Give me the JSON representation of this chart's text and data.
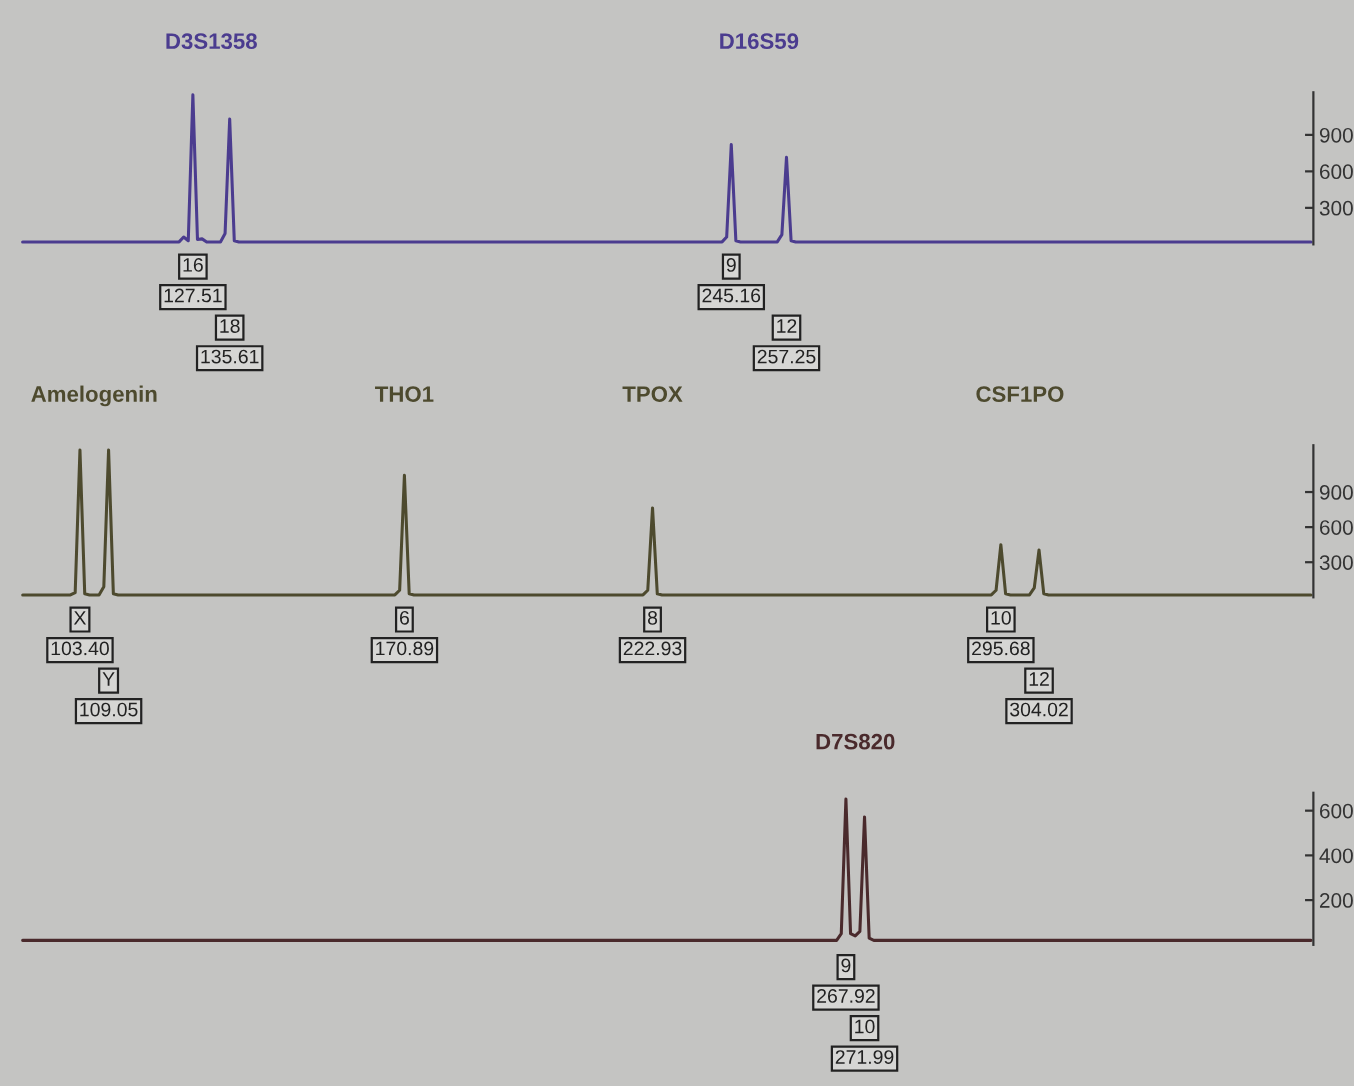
{
  "chart_data": [
    {
      "type": "line",
      "tick_labels": "y",
      "grid": false,
      "legend": false,
      "marker": "none",
      "line_style": "solid",
      "ylim": [
        0,
        1250
      ],
      "yticks": [
        300,
        600,
        900
      ],
      "categories": [
        null,
        null,
        null,
        null,
        null,
        null,
        null,
        null,
        null,
        null,
        null,
        null,
        null,
        null,
        null,
        null,
        null,
        null,
        null,
        null,
        null,
        null,
        null,
        null,
        null,
        null,
        null,
        null,
        null,
        null,
        null,
        null,
        null,
        null,
        null,
        null,
        null,
        null,
        null,
        null,
        null,
        null,
        null,
        null,
        null,
        null,
        null,
        null,
        null,
        null,
        null,
        null,
        null,
        null,
        null,
        null,
        null,
        null,
        null,
        null,
        null,
        null,
        null,
        null,
        null,
        null,
        null,
        null,
        null,
        null,
        null,
        null,
        null,
        null,
        null,
        null,
        null,
        null,
        null,
        null,
        null,
        null,
        null,
        null,
        null,
        null,
        null,
        null,
        null,
        null,
        null,
        null,
        null,
        null,
        null,
        null,
        null,
        null,
        null,
        null,
        null,
        null,
        null,
        null,
        null,
        null,
        null,
        null,
        null,
        null,
        null,
        null,
        null,
        null,
        null,
        null,
        null,
        null,
        null,
        null,
        null,
        null,
        null,
        null,
        null,
        null,
        null,
        null,
        null,
        null,
        null,
        null,
        null,
        null,
        null,
        null,
        null,
        null,
        null,
        null,
        null,
        null,
        null,
        null,
        null,
        null,
        null,
        null,
        null,
        null,
        null,
        null,
        null,
        null,
        null,
        null,
        null,
        null,
        null,
        null,
        null,
        null,
        null,
        null,
        null,
        null,
        null,
        null,
        null,
        null,
        null,
        null,
        null,
        null,
        null,
        null,
        null,
        null,
        null,
        null,
        null,
        null,
        null,
        null,
        null,
        null,
        null,
        null,
        null,
        null,
        null,
        null,
        null,
        null,
        null,
        null,
        null,
        null,
        null,
        null,
        null,
        null,
        null,
        null,
        null,
        null,
        null,
        null,
        null,
        null,
        null,
        null,
        null,
        null,
        null,
        null,
        null,
        null,
        null,
        null,
        null,
        null,
        null,
        null,
        null,
        null,
        null,
        null,
        null,
        null,
        null,
        null,
        null,
        null,
        null,
        null,
        null,
        null,
        null,
        null,
        null,
        null,
        null,
        null,
        null,
        null,
        null,
        null,
        null,
        null,
        null,
        null,
        null,
        null,
        null,
        null,
        null,
        null,
        null,
        null,
        null,
        null,
        null,
        null,
        null,
        null,
        null,
        null,
        null,
        null,
        null,
        null,
        null,
        null,
        null,
        null,
        null,
        null,
        null,
        null,
        null
      ],
      "series": [
        {
          "color": "#4b3c8f",
          "values": [
            20,
            20,
            20,
            20,
            20,
            20,
            20,
            20,
            20,
            20,
            20,
            20,
            20,
            20,
            20,
            20,
            20,
            20,
            20,
            20,
            20,
            20,
            20,
            20,
            20,
            20,
            20,
            20,
            20,
            20,
            20,
            20,
            20,
            20,
            20,
            60,
            30,
            1230,
            40,
            45,
            20,
            20,
            20,
            20,
            90,
            1030,
            30,
            20,
            20,
            20,
            20,
            20,
            20,
            20,
            20,
            20,
            20,
            20,
            20,
            20,
            20,
            20,
            20,
            20,
            20,
            20,
            20,
            20,
            20,
            20,
            20,
            20,
            20,
            20,
            20,
            20,
            20,
            20,
            20,
            20,
            20,
            20,
            20,
            20,
            20,
            20,
            20,
            20,
            20,
            20,
            20,
            20,
            20,
            20,
            20,
            20,
            20,
            20,
            20,
            20,
            20,
            20,
            20,
            20,
            20,
            20,
            20,
            20,
            20,
            20,
            20,
            20,
            20,
            20,
            20,
            20,
            20,
            20,
            20,
            20,
            20,
            20,
            20,
            20,
            20,
            20,
            20,
            20,
            20,
            20,
            20,
            20,
            20,
            20,
            20,
            20,
            20,
            20,
            20,
            20,
            20,
            20,
            20,
            20,
            20,
            20,
            20,
            20,
            20,
            20,
            20,
            20,
            20,
            60,
            820,
            30,
            20,
            20,
            20,
            20,
            20,
            20,
            20,
            20,
            20,
            80,
            715,
            30,
            20,
            20,
            20,
            20,
            20,
            20,
            20,
            20,
            20,
            20,
            20,
            20,
            20,
            20,
            20,
            20,
            20,
            20,
            20,
            20,
            20,
            20,
            20,
            20,
            20,
            20,
            20,
            20,
            20,
            20,
            20,
            20,
            20,
            20,
            20,
            20,
            20,
            20,
            20,
            20,
            20,
            20,
            20,
            20,
            20,
            20,
            20,
            20,
            20,
            20,
            20,
            20,
            20,
            20,
            20,
            20,
            20,
            20,
            20,
            20,
            20,
            20,
            20,
            20,
            20,
            20,
            20,
            20,
            20,
            20,
            20,
            20,
            20,
            20,
            20,
            20,
            20,
            20,
            20,
            20,
            20,
            20,
            20,
            20,
            20,
            20,
            20,
            20,
            20,
            20,
            20,
            20,
            20,
            20,
            20,
            20,
            20,
            20,
            20,
            20,
            20,
            20,
            20,
            20,
            20,
            20,
            20,
            20,
            20,
            20,
            20,
            20,
            20
          ]
        }
      ],
      "annotations": [
        "D3S1358",
        "D16S59",
        "16",
        "127.51",
        "18",
        "135.61",
        "9",
        "245.16",
        "12",
        "257.25"
      ]
    },
    {
      "type": "line",
      "tick_labels": "y",
      "grid": false,
      "legend": false,
      "marker": "none",
      "line_style": "solid",
      "ylim": [
        0,
        1300
      ],
      "yticks": [
        300,
        600,
        900
      ],
      "categories": [
        null,
        null,
        null,
        null,
        null,
        null,
        null,
        null,
        null,
        null,
        null,
        null,
        null,
        null,
        null,
        null,
        null,
        null,
        null,
        null,
        null,
        null,
        null,
        null,
        null,
        null,
        null,
        null,
        null,
        null,
        null,
        null,
        null,
        null,
        null,
        null,
        null,
        null,
        null,
        null,
        null,
        null,
        null,
        null,
        null,
        null,
        null,
        null,
        null,
        null,
        null,
        null,
        null,
        null,
        null,
        null,
        null,
        null,
        null,
        null,
        null,
        null,
        null,
        null,
        null,
        null,
        null,
        null,
        null,
        null,
        null,
        null,
        null,
        null,
        null,
        null,
        null,
        null,
        null,
        null,
        null,
        null,
        null,
        null,
        null,
        null,
        null,
        null,
        null,
        null,
        null,
        null,
        null,
        null,
        null,
        null,
        null,
        null,
        null,
        null,
        null,
        null,
        null,
        null,
        null,
        null,
        null,
        null,
        null,
        null,
        null,
        null,
        null,
        null,
        null,
        null,
        null,
        null,
        null,
        null,
        null,
        null,
        null,
        null,
        null,
        null,
        null,
        null,
        null,
        null,
        null,
        null,
        null,
        null,
        null,
        null,
        null,
        null,
        null,
        null,
        null,
        null,
        null,
        null,
        null,
        null,
        null,
        null,
        null,
        null,
        null,
        null,
        null,
        null,
        null,
        null,
        null,
        null,
        null,
        null,
        null,
        null,
        null,
        null,
        null,
        null,
        null,
        null,
        null,
        null,
        null,
        null,
        null,
        null,
        null,
        null,
        null,
        null,
        null,
        null,
        null,
        null,
        null,
        null,
        null,
        null,
        null,
        null,
        null,
        null,
        null,
        null,
        null,
        null,
        null,
        null,
        null,
        null,
        null,
        null,
        null,
        null,
        null,
        null,
        null,
        null,
        null,
        null,
        null,
        null,
        null,
        null,
        null,
        null,
        null,
        null,
        null,
        null,
        null,
        null,
        null,
        null,
        null,
        null,
        null,
        null,
        null,
        null,
        null,
        null,
        null,
        null,
        null,
        null,
        null,
        null,
        null,
        null,
        null,
        null,
        null,
        null,
        null,
        null,
        null,
        null,
        null,
        null,
        null,
        null,
        null,
        null,
        null,
        null,
        null,
        null,
        null,
        null,
        null,
        null,
        null,
        null,
        null,
        null,
        null,
        null,
        null,
        null,
        null,
        null,
        null
      ],
      "series": [
        {
          "color": "#4d4a2e",
          "values": [
            20,
            20,
            20,
            20,
            20,
            20,
            20,
            20,
            20,
            20,
            20,
            40,
            1260,
            30,
            20,
            20,
            20,
            90,
            1260,
            30,
            20,
            20,
            20,
            20,
            20,
            20,
            20,
            20,
            20,
            20,
            20,
            20,
            20,
            20,
            20,
            20,
            20,
            20,
            20,
            20,
            20,
            20,
            20,
            20,
            20,
            20,
            20,
            20,
            20,
            20,
            20,
            20,
            20,
            20,
            20,
            20,
            20,
            20,
            20,
            20,
            20,
            20,
            20,
            20,
            20,
            20,
            20,
            20,
            20,
            20,
            20,
            20,
            20,
            20,
            20,
            20,
            20,
            20,
            20,
            60,
            1043,
            30,
            20,
            20,
            20,
            20,
            20,
            20,
            20,
            20,
            20,
            20,
            20,
            20,
            20,
            20,
            20,
            20,
            20,
            20,
            20,
            20,
            20,
            20,
            20,
            20,
            20,
            20,
            20,
            20,
            20,
            20,
            20,
            20,
            20,
            20,
            20,
            20,
            20,
            20,
            20,
            20,
            20,
            20,
            20,
            20,
            20,
            20,
            20,
            20,
            20,
            60,
            764,
            30,
            20,
            20,
            20,
            20,
            20,
            20,
            20,
            20,
            20,
            20,
            20,
            20,
            20,
            20,
            20,
            20,
            20,
            20,
            20,
            20,
            20,
            20,
            20,
            20,
            20,
            20,
            20,
            20,
            20,
            20,
            20,
            20,
            20,
            20,
            20,
            20,
            20,
            20,
            20,
            20,
            20,
            20,
            20,
            20,
            20,
            20,
            20,
            20,
            20,
            20,
            20,
            20,
            20,
            20,
            20,
            20,
            20,
            20,
            20,
            20,
            20,
            20,
            20,
            20,
            20,
            20,
            20,
            20,
            20,
            20,
            60,
            450,
            30,
            20,
            20,
            20,
            20,
            20,
            80,
            405,
            30,
            20,
            20,
            20,
            20,
            20,
            20,
            20,
            20,
            20,
            20,
            20,
            20,
            20,
            20,
            20,
            20,
            20,
            20,
            20,
            20,
            20,
            20,
            20,
            20,
            20,
            20,
            20,
            20,
            20,
            20,
            20,
            20,
            20,
            20,
            20,
            20,
            20,
            20,
            20,
            20,
            20,
            20,
            20,
            20,
            20,
            20,
            20,
            20,
            20,
            20,
            20,
            20,
            20,
            20,
            20,
            20
          ]
        }
      ],
      "annotations": [
        "Amelogenin",
        "THO1",
        "TPOX",
        "CSF1PO",
        "X",
        "103.40",
        "Y",
        "109.05",
        "6",
        "170.89",
        "8",
        "222.93",
        "10",
        "295.68",
        "12",
        "304.02"
      ]
    },
    {
      "type": "line",
      "tick_labels": "y",
      "grid": false,
      "legend": false,
      "marker": "none",
      "line_style": "solid",
      "ylim": [
        0,
        680
      ],
      "yticks": [
        200,
        400,
        600
      ],
      "categories": [
        null,
        null,
        null,
        null,
        null,
        null,
        null,
        null,
        null,
        null,
        null,
        null,
        null,
        null,
        null,
        null,
        null,
        null,
        null,
        null,
        null,
        null,
        null,
        null,
        null,
        null,
        null,
        null,
        null,
        null,
        null,
        null,
        null,
        null,
        null,
        null,
        null,
        null,
        null,
        null,
        null,
        null,
        null,
        null,
        null,
        null,
        null,
        null,
        null,
        null,
        null,
        null,
        null,
        null,
        null,
        null,
        null,
        null,
        null,
        null,
        null,
        null,
        null,
        null,
        null,
        null,
        null,
        null,
        null,
        null,
        null,
        null,
        null,
        null,
        null,
        null,
        null,
        null,
        null,
        null,
        null,
        null,
        null,
        null,
        null,
        null,
        null,
        null,
        null,
        null,
        null,
        null,
        null,
        null,
        null,
        null,
        null,
        null,
        null,
        null,
        null,
        null,
        null,
        null,
        null,
        null,
        null,
        null,
        null,
        null,
        null,
        null,
        null,
        null,
        null,
        null,
        null,
        null,
        null,
        null,
        null,
        null,
        null,
        null,
        null,
        null,
        null,
        null,
        null,
        null,
        null,
        null,
        null,
        null,
        null,
        null,
        null,
        null,
        null,
        null,
        null,
        null,
        null,
        null,
        null,
        null,
        null,
        null,
        null,
        null,
        null,
        null,
        null,
        null,
        null,
        null,
        null,
        null,
        null,
        null,
        null,
        null,
        null,
        null,
        null,
        null,
        null,
        null,
        null,
        null,
        null,
        null,
        null,
        null,
        null,
        null,
        null,
        null,
        null,
        null,
        null,
        null,
        null,
        null,
        null,
        null,
        null,
        null,
        null,
        null,
        null,
        null,
        null,
        null,
        null,
        null,
        null,
        null,
        null,
        null,
        null,
        null,
        null,
        null,
        null,
        null,
        null,
        null,
        null,
        null,
        null,
        null,
        null,
        null,
        null,
        null,
        null,
        null,
        null,
        null,
        null,
        null,
        null,
        null,
        null,
        null,
        null,
        null,
        null,
        null,
        null,
        null,
        null,
        null,
        null,
        null,
        null,
        null,
        null,
        null,
        null,
        null,
        null,
        null,
        null,
        null,
        null,
        null,
        null,
        null,
        null,
        null,
        null,
        null,
        null,
        null,
        null,
        null,
        null,
        null,
        null,
        null,
        null,
        null,
        null,
        null,
        null,
        null,
        null,
        null,
        null,
        null,
        null,
        null,
        null,
        null,
        null,
        null
      ],
      "series": [
        {
          "color": "#4a2a2c",
          "values": [
            20,
            20,
            20,
            20,
            20,
            20,
            20,
            20,
            20,
            20,
            20,
            20,
            20,
            20,
            20,
            20,
            20,
            20,
            20,
            20,
            20,
            20,
            20,
            20,
            20,
            20,
            20,
            20,
            20,
            20,
            20,
            20,
            20,
            20,
            20,
            20,
            20,
            20,
            20,
            20,
            20,
            20,
            20,
            20,
            20,
            20,
            20,
            20,
            20,
            20,
            20,
            20,
            20,
            20,
            20,
            20,
            20,
            20,
            20,
            20,
            20,
            20,
            20,
            20,
            20,
            20,
            20,
            20,
            20,
            20,
            20,
            20,
            20,
            20,
            20,
            20,
            20,
            20,
            20,
            20,
            20,
            20,
            20,
            20,
            20,
            20,
            20,
            20,
            20,
            20,
            20,
            20,
            20,
            20,
            20,
            20,
            20,
            20,
            20,
            20,
            20,
            20,
            20,
            20,
            20,
            20,
            20,
            20,
            20,
            20,
            20,
            20,
            20,
            20,
            20,
            20,
            20,
            20,
            20,
            20,
            20,
            20,
            20,
            20,
            20,
            20,
            20,
            20,
            20,
            20,
            20,
            20,
            20,
            20,
            20,
            20,
            20,
            20,
            20,
            20,
            20,
            20,
            20,
            20,
            20,
            20,
            20,
            20,
            20,
            20,
            20,
            20,
            20,
            20,
            20,
            20,
            20,
            20,
            20,
            20,
            20,
            20,
            20,
            20,
            20,
            20,
            20,
            20,
            20,
            20,
            20,
            20,
            20,
            20,
            20,
            20,
            50,
            652,
            50,
            40,
            60,
            572,
            30,
            20,
            20,
            20,
            20,
            20,
            20,
            20,
            20,
            20,
            20,
            20,
            20,
            20,
            20,
            20,
            20,
            20,
            20,
            20,
            20,
            20,
            20,
            20,
            20,
            20,
            20,
            20,
            20,
            20,
            20,
            20,
            20,
            20,
            20,
            20,
            20,
            20,
            20,
            20,
            20,
            20,
            20,
            20,
            20,
            20,
            20,
            20,
            20,
            20,
            20,
            20,
            20,
            20,
            20,
            20,
            20,
            20,
            20,
            20,
            20,
            20,
            20,
            20,
            20,
            20,
            20,
            20,
            20,
            20,
            20,
            20,
            20,
            20,
            20,
            20,
            20,
            20,
            20,
            20,
            20,
            20,
            20,
            20,
            20,
            20,
            20,
            20,
            20,
            20,
            20,
            20,
            20,
            20,
            20,
            20
          ]
        }
      ],
      "annotations": [
        "D7S820",
        "9",
        "267.92",
        "10",
        "271.99"
      ]
    }
  ]
}
